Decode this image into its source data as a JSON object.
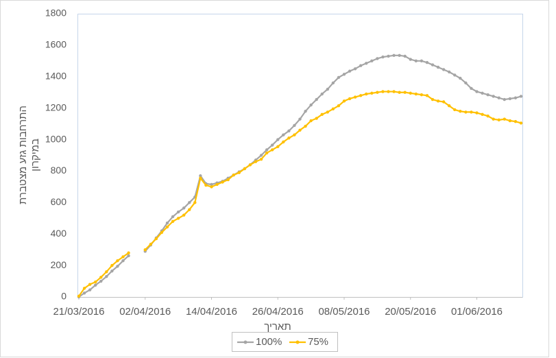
{
  "chart_data": {
    "type": "line",
    "y_label": [
      "התרחבות גזע מצטברת",
      "במיקרון"
    ],
    "x_label": "תאריך",
    "x": [
      "21/03/2016",
      "22/03/2016",
      "23/03/2016",
      "24/03/2016",
      "25/03/2016",
      "26/03/2016",
      "27/03/2016",
      "28/03/2016",
      "29/03/2016",
      "30/03/2016",
      "31/03/2016",
      "01/04/2016",
      "02/04/2016",
      "03/04/2016",
      "04/04/2016",
      "05/04/2016",
      "06/04/2016",
      "07/04/2016",
      "08/04/2016",
      "09/04/2016",
      "10/04/2016",
      "11/04/2016",
      "12/04/2016",
      "13/04/2016",
      "14/04/2016",
      "15/04/2016",
      "16/04/2016",
      "17/04/2016",
      "18/04/2016",
      "19/04/2016",
      "20/04/2016",
      "21/04/2016",
      "22/04/2016",
      "23/04/2016",
      "24/04/2016",
      "25/04/2016",
      "26/04/2016",
      "27/04/2016",
      "28/04/2016",
      "29/04/2016",
      "30/04/2016",
      "01/05/2016",
      "02/05/2016",
      "03/05/2016",
      "04/05/2016",
      "05/05/2016",
      "06/05/2016",
      "07/05/2016",
      "08/05/2016",
      "09/05/2016",
      "10/05/2016",
      "11/05/2016",
      "12/05/2016",
      "13/05/2016",
      "14/05/2016",
      "15/05/2016",
      "16/05/2016",
      "17/05/2016",
      "18/05/2016",
      "19/05/2016",
      "20/05/2016",
      "21/05/2016",
      "22/05/2016",
      "23/05/2016",
      "24/05/2016",
      "25/05/2016",
      "26/05/2016",
      "27/05/2016",
      "28/05/2016",
      "29/05/2016",
      "30/05/2016",
      "31/05/2016",
      "01/06/2016",
      "02/06/2016",
      "03/06/2016",
      "04/06/2016",
      "05/06/2016",
      "06/06/2016",
      "07/06/2016",
      "08/06/2016",
      "09/06/2016"
    ],
    "series": [
      {
        "name": "100%",
        "color": "#a5a5a5",
        "values": [
          0,
          25,
          45,
          75,
          100,
          130,
          165,
          195,
          230,
          262,
          null,
          null,
          290,
          330,
          375,
          420,
          470,
          510,
          540,
          565,
          600,
          635,
          770,
          720,
          715,
          725,
          735,
          755,
          775,
          795,
          815,
          840,
          870,
          900,
          935,
          965,
          1000,
          1030,
          1055,
          1090,
          1130,
          1180,
          1220,
          1255,
          1290,
          1320,
          1360,
          1395,
          1415,
          1435,
          1450,
          1470,
          1485,
          1500,
          1515,
          1525,
          1530,
          1535,
          1535,
          1530,
          1510,
          1500,
          1500,
          1490,
          1475,
          1460,
          1445,
          1430,
          1410,
          1390,
          1360,
          1325,
          1305,
          1295,
          1285,
          1275,
          1265,
          1255,
          1260,
          1265,
          1275
        ]
      },
      {
        "name": "75%",
        "color": "#ffc000",
        "values": [
          5,
          55,
          80,
          95,
          125,
          160,
          200,
          230,
          255,
          280,
          null,
          null,
          300,
          335,
          370,
          410,
          445,
          480,
          500,
          520,
          555,
          600,
          755,
          710,
          700,
          715,
          730,
          745,
          775,
          790,
          815,
          840,
          860,
          875,
          915,
          935,
          955,
          985,
          1010,
          1030,
          1060,
          1085,
          1120,
          1135,
          1160,
          1175,
          1195,
          1215,
          1245,
          1260,
          1270,
          1280,
          1290,
          1295,
          1300,
          1305,
          1305,
          1305,
          1300,
          1300,
          1295,
          1290,
          1285,
          1280,
          1255,
          1245,
          1240,
          1215,
          1190,
          1180,
          1175,
          1175,
          1170,
          1160,
          1150,
          1130,
          1125,
          1130,
          1120,
          1115,
          1105
        ]
      }
    ],
    "xlim": [
      "21/03/2016",
      "09/06/2016"
    ],
    "xticks": [
      "21/03/2016",
      "02/04/2016",
      "14/04/2016",
      "26/04/2016",
      "08/05/2016",
      "20/05/2016",
      "01/06/2016"
    ],
    "ylim": [
      0,
      1800
    ],
    "yticks": [
      0,
      200,
      400,
      600,
      800,
      1000,
      1200,
      1400,
      1600,
      1800
    ],
    "grid": false,
    "legend": "bottom"
  }
}
